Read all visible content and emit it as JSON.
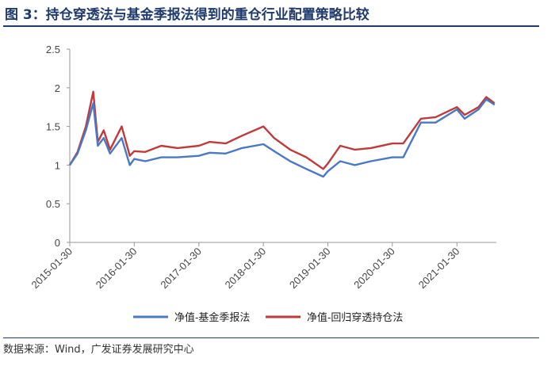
{
  "figure": {
    "title": "图 3：持仓穿透法与基金季报法得到的重仓行业配置策略比较",
    "source": "数据来源：Wind，广发证券发展研究中心"
  },
  "chart_data": {
    "type": "line",
    "title": "",
    "xlabel": "",
    "ylabel": "",
    "ylim": [
      0,
      2.5
    ],
    "yticks": [
      "0",
      "0.5",
      "1",
      "1.5",
      "2",
      "2.5"
    ],
    "xticks": [
      "2015-01-30",
      "2016-01-30",
      "2017-01-30",
      "2018-01-30",
      "2019-01-30",
      "2020-01-30",
      "2021-01-30"
    ],
    "grid": false,
    "legend_position": "bottom",
    "x_dates": [
      "2015-01-30",
      "2015-03-15",
      "2015-05-01",
      "2015-06-12",
      "2015-07-08",
      "2015-08-10",
      "2015-09-15",
      "2015-11-20",
      "2016-01-05",
      "2016-01-30",
      "2016-04-01",
      "2016-07-01",
      "2016-10-01",
      "2017-01-30",
      "2017-04-01",
      "2017-07-01",
      "2017-10-01",
      "2018-01-30",
      "2018-04-01",
      "2018-07-01",
      "2018-10-01",
      "2019-01-04",
      "2019-01-30",
      "2019-04-10",
      "2019-07-01",
      "2019-10-01",
      "2020-01-30",
      "2020-04-01",
      "2020-07-10",
      "2020-10-01",
      "2021-01-30",
      "2021-03-15",
      "2021-06-01",
      "2021-07-15",
      "2021-08-31"
    ],
    "series": [
      {
        "name": "净值-基金季报法",
        "color": "#4a78c2",
        "values": [
          1.0,
          1.15,
          1.45,
          1.8,
          1.25,
          1.35,
          1.15,
          1.35,
          1.0,
          1.08,
          1.05,
          1.1,
          1.1,
          1.12,
          1.16,
          1.15,
          1.22,
          1.27,
          1.18,
          1.05,
          0.95,
          0.85,
          0.92,
          1.05,
          1.0,
          1.05,
          1.1,
          1.1,
          1.55,
          1.55,
          1.72,
          1.6,
          1.72,
          1.85,
          1.78
        ]
      },
      {
        "name": "净值-回归穿透持仓法",
        "color": "#c0393b",
        "values": [
          1.0,
          1.17,
          1.5,
          1.95,
          1.3,
          1.45,
          1.2,
          1.5,
          1.12,
          1.18,
          1.17,
          1.25,
          1.22,
          1.25,
          1.3,
          1.28,
          1.38,
          1.5,
          1.35,
          1.2,
          1.1,
          0.95,
          1.02,
          1.25,
          1.2,
          1.22,
          1.28,
          1.28,
          1.6,
          1.62,
          1.75,
          1.65,
          1.75,
          1.88,
          1.8
        ]
      }
    ]
  }
}
